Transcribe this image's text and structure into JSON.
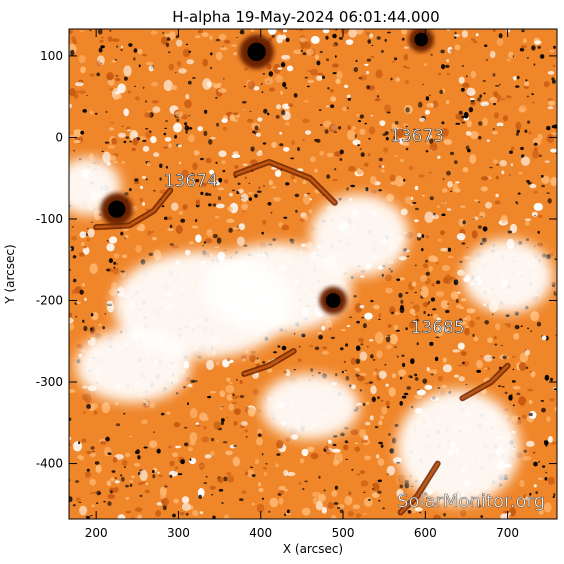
{
  "chart_data": {
    "type": "heatmap",
    "title": "H-alpha 19-May-2024 06:01:44.000",
    "xlabel": "X (arcsec)",
    "ylabel": "Y (arcsec)",
    "xlim": [
      167,
      760
    ],
    "ylim": [
      -468,
      133
    ],
    "x_ticks": [
      {
        "value": 200,
        "label": "200"
      },
      {
        "value": 300,
        "label": "300"
      },
      {
        "value": 400,
        "label": "400"
      },
      {
        "value": 500,
        "label": "500"
      },
      {
        "value": 600,
        "label": "600"
      },
      {
        "value": 700,
        "label": "700"
      }
    ],
    "y_ticks": [
      {
        "value": 100,
        "label": "100"
      },
      {
        "value": 0,
        "label": "0"
      },
      {
        "value": -100,
        "label": "-100"
      },
      {
        "value": -200,
        "label": "-200"
      },
      {
        "value": -300,
        "label": "-300"
      },
      {
        "value": -400,
        "label": "-400"
      }
    ],
    "colormap": [
      "#000000",
      "#6a2300",
      "#c85a12",
      "#f0862a",
      "#ffb873",
      "#ffffff"
    ],
    "background_color": "#f0862a",
    "region_labels": [
      {
        "label": "13674",
        "x": 315,
        "y": -60
      },
      {
        "label": "13673",
        "x": 590,
        "y": -5
      },
      {
        "label": "13685",
        "x": 615,
        "y": -240
      }
    ],
    "dark_spots": [
      {
        "x": 225,
        "y": -88,
        "r": 14
      },
      {
        "x": 488,
        "y": -200,
        "r": 12
      },
      {
        "x": 395,
        "y": 105,
        "r": 15
      },
      {
        "x": 595,
        "y": 120,
        "r": 11
      }
    ],
    "filaments": [
      {
        "points": [
          [
            200,
            -110
          ],
          [
            240,
            -108
          ],
          [
            270,
            -90
          ],
          [
            290,
            -65
          ]
        ]
      },
      {
        "points": [
          [
            380,
            -290
          ],
          [
            410,
            -280
          ],
          [
            440,
            -262
          ]
        ]
      },
      {
        "points": [
          [
            370,
            -45
          ],
          [
            410,
            -30
          ],
          [
            460,
            -50
          ],
          [
            490,
            -80
          ]
        ]
      },
      {
        "points": [
          [
            570,
            -460
          ],
          [
            590,
            -440
          ],
          [
            615,
            -400
          ]
        ]
      },
      {
        "points": [
          [
            645,
            -320
          ],
          [
            680,
            -300
          ],
          [
            700,
            -280
          ]
        ]
      }
    ],
    "bright_regions": [
      {
        "x": 330,
        "y": -205,
        "rx": 110,
        "ry": 65
      },
      {
        "x": 420,
        "y": -185,
        "rx": 90,
        "ry": 55
      },
      {
        "x": 245,
        "y": -280,
        "rx": 70,
        "ry": 45
      },
      {
        "x": 640,
        "y": -380,
        "rx": 75,
        "ry": 70
      },
      {
        "x": 520,
        "y": -120,
        "rx": 60,
        "ry": 50
      },
      {
        "x": 190,
        "y": -60,
        "rx": 40,
        "ry": 35
      },
      {
        "x": 460,
        "y": -330,
        "rx": 60,
        "ry": 40
      },
      {
        "x": 700,
        "y": -170,
        "rx": 55,
        "ry": 45
      }
    ],
    "watermark": "SolarMonitor.org",
    "grid": false
  }
}
